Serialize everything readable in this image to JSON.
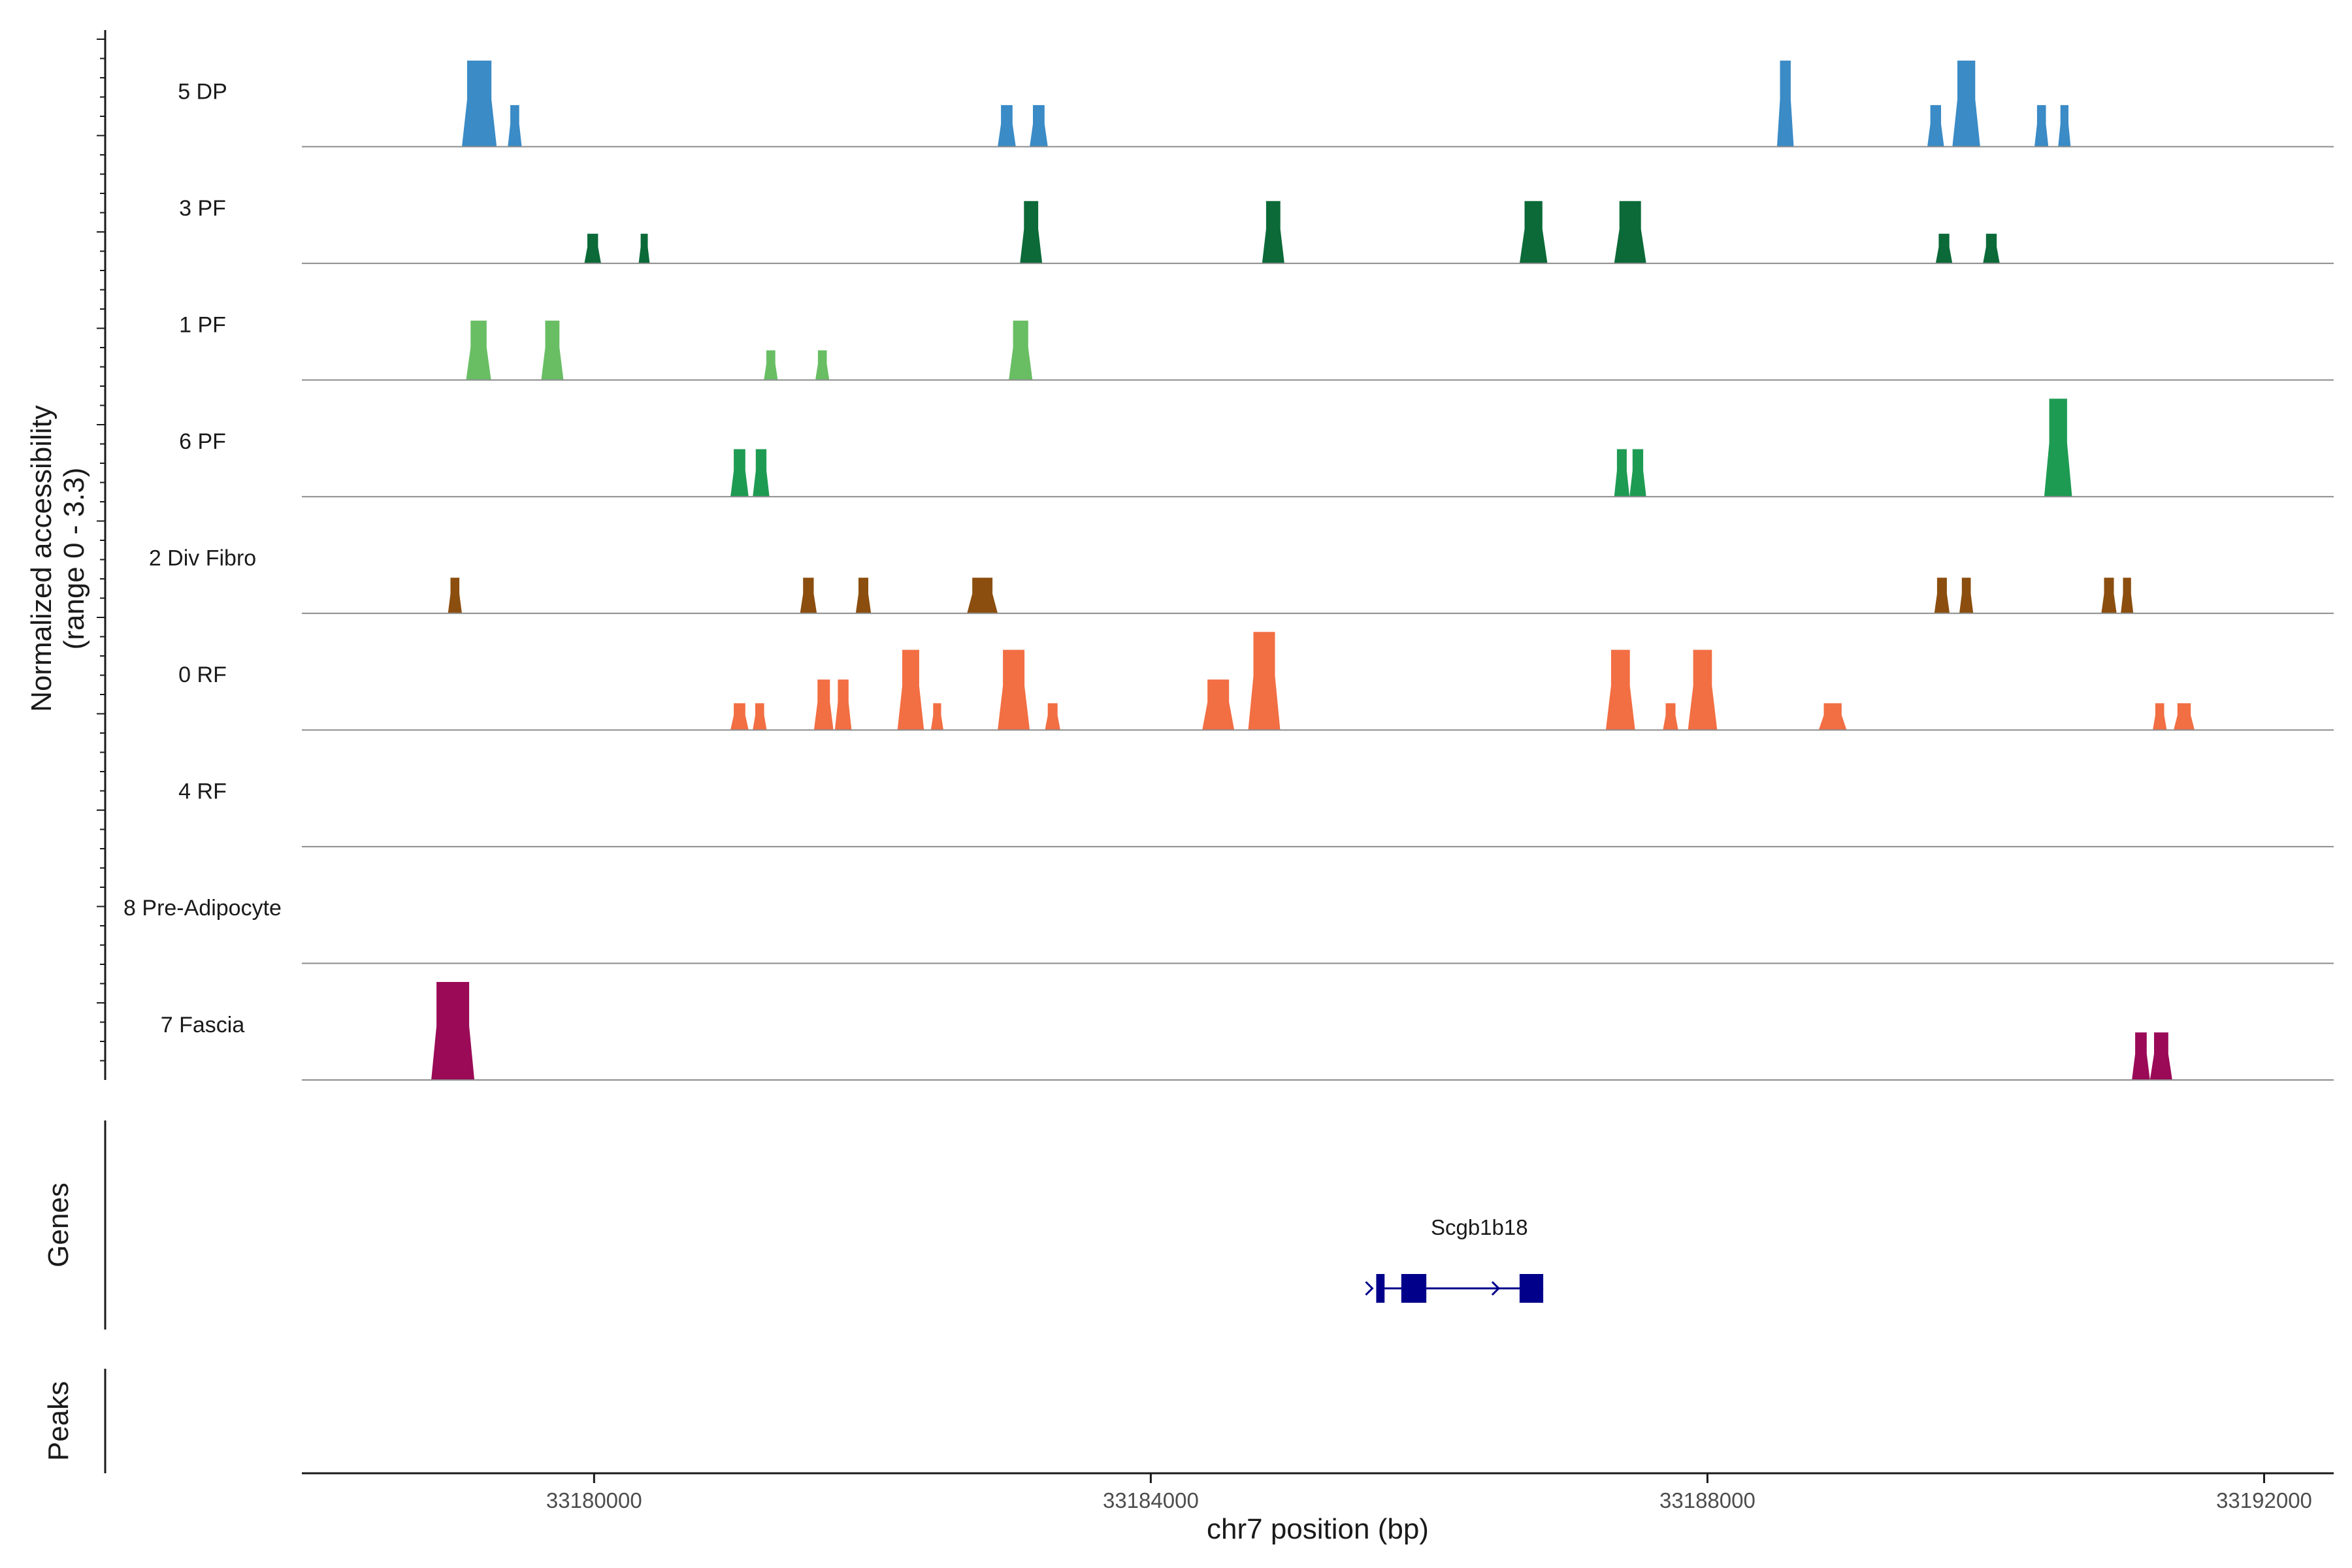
{
  "chart_data": {
    "type": "coverage-track",
    "xlabel": "chr7 position (bp)",
    "xlim": [
      33177900,
      33192500
    ],
    "x_ticks": [
      33180000,
      33184000,
      33188000,
      33192000
    ],
    "x_tick_labels": [
      "33180000",
      "33184000",
      "33188000",
      "33192000"
    ],
    "ylabel_line1": "Normalized accessibility",
    "ylabel_line2": "(range 0 - 3.3)",
    "ylim": [
      0,
      3.3
    ],
    "tracks": [
      {
        "name": "5 DP",
        "color": "#3A8BC6",
        "peaks": [
          {
            "start": 33179050,
            "end": 33179300,
            "height": 2.9
          },
          {
            "start": 33179380,
            "end": 33179480,
            "height": 1.4
          },
          {
            "start": 33182900,
            "end": 33183030,
            "height": 1.4
          },
          {
            "start": 33183130,
            "end": 33183260,
            "height": 1.4
          },
          {
            "start": 33188500,
            "end": 33188620,
            "height": 2.9
          },
          {
            "start": 33189580,
            "end": 33189700,
            "height": 1.4
          },
          {
            "start": 33189760,
            "end": 33189960,
            "height": 2.9
          },
          {
            "start": 33190350,
            "end": 33190450,
            "height": 1.4
          },
          {
            "start": 33190520,
            "end": 33190610,
            "height": 1.4
          }
        ]
      },
      {
        "name": "3 PF",
        "color": "#0B6A38",
        "peaks": [
          {
            "start": 33179930,
            "end": 33180050,
            "height": 1.0
          },
          {
            "start": 33180320,
            "end": 33180400,
            "height": 1.0
          },
          {
            "start": 33183060,
            "end": 33183220,
            "height": 2.1
          },
          {
            "start": 33184800,
            "end": 33184960,
            "height": 2.1
          },
          {
            "start": 33186650,
            "end": 33186850,
            "height": 2.1
          },
          {
            "start": 33187330,
            "end": 33187560,
            "height": 2.1
          },
          {
            "start": 33189640,
            "end": 33189760,
            "height": 1.0
          },
          {
            "start": 33189980,
            "end": 33190100,
            "height": 1.0
          }
        ]
      },
      {
        "name": "1 PF",
        "color": "#69BE64",
        "peaks": [
          {
            "start": 33179080,
            "end": 33179260,
            "height": 2.0
          },
          {
            "start": 33179620,
            "end": 33179780,
            "height": 2.0
          },
          {
            "start": 33181220,
            "end": 33181320,
            "height": 1.0
          },
          {
            "start": 33181590,
            "end": 33181690,
            "height": 1.0
          },
          {
            "start": 33182980,
            "end": 33183150,
            "height": 2.0
          }
        ]
      },
      {
        "name": "6 PF",
        "color": "#1E9B53",
        "peaks": [
          {
            "start": 33180980,
            "end": 33181110,
            "height": 1.6
          },
          {
            "start": 33181140,
            "end": 33181260,
            "height": 1.6
          },
          {
            "start": 33187330,
            "end": 33187440,
            "height": 1.6
          },
          {
            "start": 33187440,
            "end": 33187560,
            "height": 1.6
          },
          {
            "start": 33190420,
            "end": 33190620,
            "height": 3.3
          }
        ]
      },
      {
        "name": "2 Div Fibro",
        "color": "#8B4E0F",
        "peaks": [
          {
            "start": 33178950,
            "end": 33179050,
            "height": 1.2
          },
          {
            "start": 33181480,
            "end": 33181600,
            "height": 1.2
          },
          {
            "start": 33181880,
            "end": 33181990,
            "height": 1.2
          },
          {
            "start": 33182680,
            "end": 33182900,
            "height": 1.2
          },
          {
            "start": 33189630,
            "end": 33189740,
            "height": 1.2
          },
          {
            "start": 33189810,
            "end": 33189910,
            "height": 1.2
          },
          {
            "start": 33190830,
            "end": 33190940,
            "height": 1.2
          },
          {
            "start": 33190970,
            "end": 33191060,
            "height": 1.2
          }
        ]
      },
      {
        "name": "0 RF",
        "color": "#F26E43",
        "peaks": [
          {
            "start": 33180980,
            "end": 33181110,
            "height": 0.9
          },
          {
            "start": 33181140,
            "end": 33181240,
            "height": 0.9
          },
          {
            "start": 33181580,
            "end": 33181720,
            "height": 1.7
          },
          {
            "start": 33181730,
            "end": 33181850,
            "height": 1.7
          },
          {
            "start": 33182180,
            "end": 33182370,
            "height": 2.7
          },
          {
            "start": 33182420,
            "end": 33182510,
            "height": 0.9
          },
          {
            "start": 33182900,
            "end": 33183130,
            "height": 2.7
          },
          {
            "start": 33183240,
            "end": 33183350,
            "height": 0.9
          },
          {
            "start": 33184370,
            "end": 33184600,
            "height": 1.7
          },
          {
            "start": 33184700,
            "end": 33184930,
            "height": 3.3
          },
          {
            "start": 33187270,
            "end": 33187480,
            "height": 2.7
          },
          {
            "start": 33187680,
            "end": 33187790,
            "height": 0.9
          },
          {
            "start": 33187860,
            "end": 33188070,
            "height": 2.7
          },
          {
            "start": 33188800,
            "end": 33189000,
            "height": 0.9
          },
          {
            "start": 33191200,
            "end": 33191300,
            "height": 0.9
          },
          {
            "start": 33191350,
            "end": 33191500,
            "height": 0.9
          }
        ]
      },
      {
        "name": "4 RF",
        "color": "#E8645A",
        "peaks": []
      },
      {
        "name": "8 Pre-Adipocyte",
        "color": "#B24A7A",
        "peaks": []
      },
      {
        "name": "7 Fascia",
        "color": "#9A0A57",
        "peaks": [
          {
            "start": 33178830,
            "end": 33179140,
            "height": 3.3
          },
          {
            "start": 33191050,
            "end": 33191180,
            "height": 1.6
          },
          {
            "start": 33191180,
            "end": 33191340,
            "height": 1.6
          }
        ]
      }
    ],
    "genes_label": "Genes",
    "peaks_label": "Peaks",
    "gene": {
      "name": "Scgb1b18",
      "color": "#00008B",
      "start": 33185620,
      "end": 33186820,
      "exons": [
        [
          33185620,
          33185680
        ],
        [
          33185800,
          33185980
        ],
        [
          33186650,
          33186820
        ]
      ],
      "strand": "+"
    }
  }
}
